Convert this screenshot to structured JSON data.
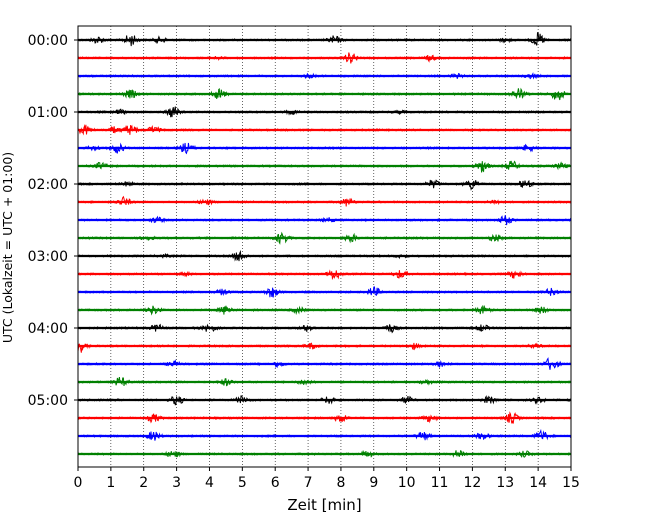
{
  "chart_data": {
    "type": "line",
    "title": "",
    "xlabel": "Zeit  [min]",
    "ylabel": "UTC (Lokalzeit = UTC + 01:00)",
    "xlim": [
      0,
      15
    ],
    "x_ticks": [
      0,
      1,
      2,
      3,
      4,
      5,
      6,
      7,
      8,
      9,
      10,
      11,
      12,
      13,
      14,
      15
    ],
    "x_tick_labels": [
      "0",
      "1",
      "2",
      "3",
      "4",
      "5",
      "6",
      "7",
      "8",
      "9",
      "10",
      "11",
      "12",
      "13",
      "14",
      "15"
    ],
    "y_ticks": [
      0,
      60,
      120,
      180,
      240,
      300
    ],
    "y_tick_labels": [
      "00:00",
      "01:00",
      "02:00",
      "03:00",
      "04:00",
      "05:00"
    ],
    "y_unit": "minutes after 00:00 UTC",
    "y_inverted": true,
    "grid": "vertical dotted lines at each minute",
    "legend": "none",
    "trace_colors_cycle": [
      "#000000",
      "#ff0000",
      "#0000ff",
      "#008000"
    ],
    "traces": [
      {
        "row_start": 0,
        "color": "#000000",
        "events": [
          [
            0.6,
            0.5
          ],
          [
            1.6,
            0.9
          ],
          [
            2.5,
            0.4
          ],
          [
            7.8,
            0.6
          ],
          [
            14.0,
            1.0
          ],
          [
            13.0,
            0.3
          ]
        ]
      },
      {
        "row_start": 15,
        "color": "#ff0000",
        "events": [
          [
            8.3,
            0.8
          ],
          [
            10.7,
            0.4
          ],
          [
            4.2,
            0.2
          ]
        ]
      },
      {
        "row_start": 30,
        "color": "#0000ff",
        "events": [
          [
            7.0,
            0.3
          ],
          [
            11.5,
            0.3
          ],
          [
            13.8,
            0.3
          ]
        ]
      },
      {
        "row_start": 45,
        "color": "#008000",
        "events": [
          [
            1.6,
            0.6
          ],
          [
            4.3,
            0.8
          ],
          [
            13.4,
            0.9
          ],
          [
            14.6,
            1.0
          ]
        ]
      },
      {
        "row_start": 60,
        "color": "#000000",
        "events": [
          [
            2.9,
            0.9
          ],
          [
            1.3,
            0.3
          ],
          [
            6.5,
            0.3
          ],
          [
            9.8,
            0.2
          ]
        ]
      },
      {
        "row_start": 75,
        "color": "#ff0000",
        "events": [
          [
            0.2,
            0.7
          ],
          [
            1.6,
            0.8
          ],
          [
            2.3,
            0.5
          ],
          [
            1.1,
            0.5
          ]
        ]
      },
      {
        "row_start": 90,
        "color": "#0000ff",
        "events": [
          [
            1.2,
            0.7
          ],
          [
            3.3,
            0.8
          ],
          [
            0.5,
            0.3
          ],
          [
            13.7,
            0.5
          ]
        ]
      },
      {
        "row_start": 105,
        "color": "#008000",
        "events": [
          [
            0.7,
            0.5
          ],
          [
            12.3,
            0.9
          ],
          [
            13.2,
            0.7
          ],
          [
            14.7,
            0.4
          ]
        ]
      },
      {
        "row_start": 120,
        "color": "#000000",
        "events": [
          [
            12.0,
            0.8
          ],
          [
            13.6,
            0.6
          ],
          [
            10.8,
            0.6
          ],
          [
            1.5,
            0.3
          ]
        ]
      },
      {
        "row_start": 135,
        "color": "#ff0000",
        "events": [
          [
            1.4,
            0.7
          ],
          [
            3.9,
            0.4
          ],
          [
            8.2,
            0.6
          ],
          [
            12.7,
            0.3
          ]
        ]
      },
      {
        "row_start": 150,
        "color": "#0000ff",
        "events": [
          [
            2.4,
            0.4
          ],
          [
            13.0,
            0.7
          ],
          [
            7.6,
            0.3
          ]
        ]
      },
      {
        "row_start": 165,
        "color": "#008000",
        "events": [
          [
            6.2,
            0.8
          ],
          [
            8.3,
            0.6
          ],
          [
            12.7,
            0.5
          ],
          [
            2.1,
            0.3
          ]
        ]
      },
      {
        "row_start": 180,
        "color": "#000000",
        "events": [
          [
            4.9,
            0.8
          ],
          [
            2.6,
            0.2
          ],
          [
            9.8,
            0.2
          ]
        ]
      },
      {
        "row_start": 195,
        "color": "#ff0000",
        "events": [
          [
            7.8,
            0.8
          ],
          [
            9.8,
            0.6
          ],
          [
            13.3,
            0.6
          ],
          [
            3.2,
            0.3
          ]
        ]
      },
      {
        "row_start": 210,
        "color": "#0000ff",
        "events": [
          [
            5.9,
            0.8
          ],
          [
            4.4,
            0.4
          ],
          [
            9.0,
            0.7
          ],
          [
            14.4,
            0.5
          ]
        ]
      },
      {
        "row_start": 225,
        "color": "#008000",
        "events": [
          [
            2.3,
            0.6
          ],
          [
            4.5,
            0.7
          ],
          [
            6.7,
            0.4
          ],
          [
            12.3,
            0.6
          ],
          [
            14.1,
            0.5
          ]
        ]
      },
      {
        "row_start": 240,
        "color": "#000000",
        "events": [
          [
            2.4,
            0.5
          ],
          [
            4.0,
            0.6
          ],
          [
            7.0,
            0.5
          ],
          [
            9.5,
            0.6
          ],
          [
            12.3,
            0.5
          ]
        ]
      },
      {
        "row_start": 255,
        "color": "#ff0000",
        "events": [
          [
            0.05,
            1.0
          ],
          [
            7.1,
            0.4
          ],
          [
            10.2,
            0.4
          ],
          [
            13.9,
            0.3
          ]
        ]
      },
      {
        "row_start": 270,
        "color": "#0000ff",
        "events": [
          [
            2.9,
            0.4
          ],
          [
            6.1,
            0.4
          ],
          [
            11.0,
            0.4
          ],
          [
            14.4,
            1.0
          ]
        ]
      },
      {
        "row_start": 285,
        "color": "#008000",
        "events": [
          [
            1.3,
            0.7
          ],
          [
            4.5,
            0.5
          ],
          [
            6.9,
            0.4
          ],
          [
            10.6,
            0.3
          ]
        ]
      },
      {
        "row_start": 300,
        "color": "#000000",
        "events": [
          [
            3.0,
            0.7
          ],
          [
            5.0,
            0.6
          ],
          [
            7.6,
            0.5
          ],
          [
            10.0,
            0.5
          ],
          [
            12.5,
            0.5
          ],
          [
            14.0,
            0.4
          ]
        ]
      },
      {
        "row_start": 315,
        "color": "#ff0000",
        "events": [
          [
            2.3,
            0.6
          ],
          [
            8.0,
            0.6
          ],
          [
            10.7,
            0.5
          ],
          [
            13.2,
            0.8
          ]
        ]
      },
      {
        "row_start": 330,
        "color": "#0000ff",
        "events": [
          [
            2.3,
            0.7
          ],
          [
            10.5,
            0.7
          ],
          [
            12.3,
            0.5
          ],
          [
            14.1,
            0.8
          ]
        ]
      },
      {
        "row_start": 345,
        "color": "#008000",
        "events": [
          [
            2.9,
            0.5
          ],
          [
            8.8,
            0.4
          ],
          [
            11.6,
            0.6
          ],
          [
            13.6,
            0.4
          ]
        ]
      }
    ]
  }
}
